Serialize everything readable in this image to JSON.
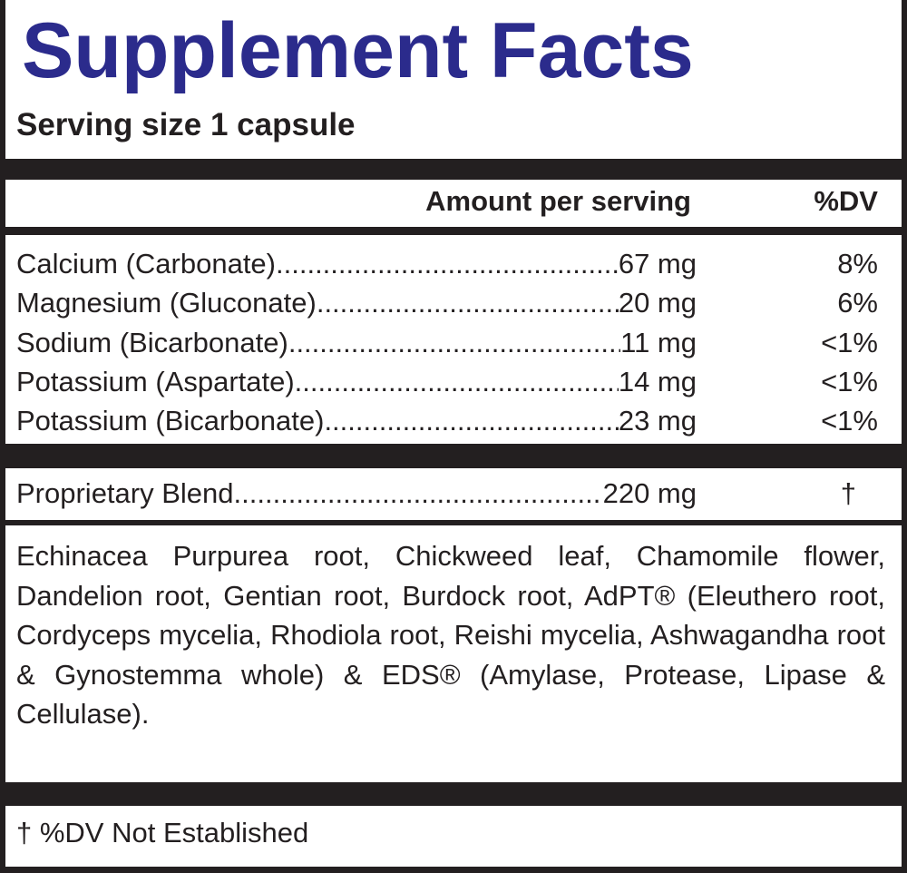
{
  "title": "Supplement Facts",
  "serving_size": "Serving size 1 capsule",
  "header": {
    "amount": "Amount per serving",
    "dv": "%DV"
  },
  "nutrients": [
    {
      "name": "Calcium (Carbonate)",
      "amount": "67 mg",
      "dv": "8%"
    },
    {
      "name": "Magnesium (Gluconate)",
      "amount": "20 mg",
      "dv": "6%"
    },
    {
      "name": "Sodium (Bicarbonate)",
      "amount": "11 mg",
      "dv": "<1%"
    },
    {
      "name": "Potassium (Aspartate)",
      "amount": "14 mg",
      "dv": "<1%"
    },
    {
      "name": "Potassium (Bicarbonate)",
      "amount": "23 mg",
      "dv": "<1%"
    }
  ],
  "blend": {
    "name": "Proprietary Blend",
    "amount": "220 mg",
    "dv": "†"
  },
  "ingredients": "Echinacea Purpurea root, Chickweed leaf, Chamomile flower, Dandelion root, Gentian root, Burdock root, AdPT® (Eleuthero root, Cordyceps mycelia, Rhodiola root, Reishi mycelia, Ashwagand­ha root & Gynostemma whole) & EDS® (Amylase, Protease, Lipase & Cellulase).",
  "footnote": "† %DV Not Established",
  "colors": {
    "title": "#2b2b8c",
    "background": "#231f20"
  }
}
